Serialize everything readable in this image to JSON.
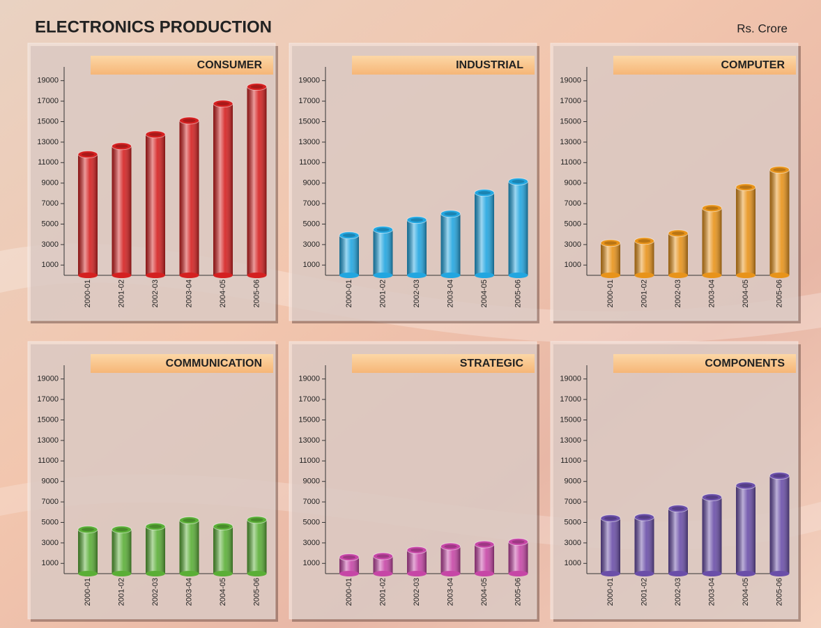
{
  "header": {
    "title": "ELECTRONICS PRODUCTION",
    "unit": "Rs. Crore"
  },
  "chart_data": [
    {
      "type": "bar",
      "title": "CONSUMER",
      "categories": [
        "2000-01",
        "2001-02",
        "2002-03",
        "2003-04",
        "2004-05",
        "2005-06"
      ],
      "values": [
        11800,
        12600,
        13750,
        15100,
        16750,
        18400
      ],
      "color": "#d42020",
      "ylim": [
        0,
        20000
      ],
      "yticks": [
        1000,
        3000,
        5000,
        7000,
        9000,
        11000,
        13000,
        15000,
        17000,
        19000
      ]
    },
    {
      "type": "bar",
      "title": "INDUSTRIAL",
      "categories": [
        "2000-01",
        "2001-02",
        "2002-03",
        "2003-04",
        "2004-05",
        "2005-06"
      ],
      "values": [
        3900,
        4450,
        5400,
        6000,
        8050,
        9150
      ],
      "color": "#22a6e0",
      "ylim": [
        0,
        20000
      ],
      "yticks": [
        1000,
        3000,
        5000,
        7000,
        9000,
        11000,
        13000,
        15000,
        17000,
        19000
      ]
    },
    {
      "type": "bar",
      "title": "COMPUTER",
      "categories": [
        "2000-01",
        "2001-02",
        "2002-03",
        "2003-04",
        "2004-05",
        "2005-06"
      ],
      "values": [
        3150,
        3350,
        4100,
        6550,
        8600,
        10300
      ],
      "color": "#e8931a",
      "ylim": [
        0,
        20000
      ],
      "yticks": [
        1000,
        3000,
        5000,
        7000,
        9000,
        11000,
        13000,
        15000,
        17000,
        19000
      ]
    },
    {
      "type": "bar",
      "title": "COMMUNICATION",
      "categories": [
        "2000-01",
        "2001-02",
        "2002-03",
        "2003-04",
        "2004-05",
        "2005-06"
      ],
      "values": [
        4300,
        4300,
        4600,
        5200,
        4600,
        5250
      ],
      "color": "#5aae36",
      "ylim": [
        0,
        20000
      ],
      "yticks": [
        1000,
        3000,
        5000,
        7000,
        9000,
        11000,
        13000,
        15000,
        17000,
        19000
      ]
    },
    {
      "type": "bar",
      "title": "STRATEGIC",
      "categories": [
        "2000-01",
        "2001-02",
        "2002-03",
        "2003-04",
        "2004-05",
        "2005-06"
      ],
      "values": [
        1600,
        1700,
        2300,
        2650,
        2850,
        3100
      ],
      "color": "#c646a6",
      "ylim": [
        0,
        20000
      ],
      "yticks": [
        1000,
        3000,
        5000,
        7000,
        9000,
        11000,
        13000,
        15000,
        17000,
        19000
      ]
    },
    {
      "type": "bar",
      "title": "COMPONENTS",
      "categories": [
        "2000-01",
        "2001-02",
        "2002-03",
        "2003-04",
        "2004-05",
        "2005-06"
      ],
      "values": [
        5400,
        5500,
        6350,
        7450,
        8600,
        9550
      ],
      "color": "#6a4ea8",
      "ylim": [
        0,
        20000
      ],
      "yticks": [
        1000,
        3000,
        5000,
        7000,
        9000,
        11000,
        13000,
        15000,
        17000,
        19000
      ]
    }
  ]
}
